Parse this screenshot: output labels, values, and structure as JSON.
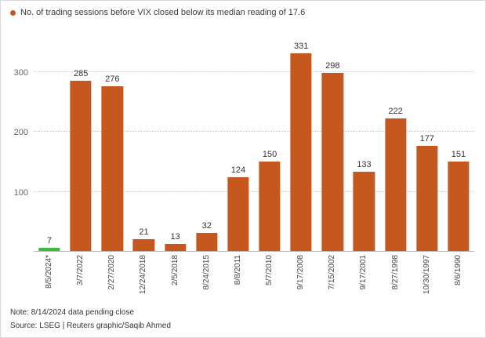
{
  "legend": {
    "label": "No. of trading sessions before VIX closed below its median reading of 17.6"
  },
  "colors": {
    "bar": "#c4581f",
    "highlight": "#3bbd3b",
    "legend_dot": "#c4581f"
  },
  "chart_data": {
    "type": "bar",
    "title": "No. of trading sessions before VIX closed below its median reading of 17.6",
    "categories": [
      "8/5/2024*",
      "3/7/2022",
      "2/27/2020",
      "12/24/2018",
      "2/5/2018",
      "8/24/2015",
      "8/8/2011",
      "5/7/2010",
      "9/17/2008",
      "7/15/2002",
      "9/17/2001",
      "8/27/1998",
      "10/30/1997",
      "8/6/1990"
    ],
    "values": [
      7,
      285,
      276,
      21,
      13,
      32,
      124,
      150,
      331,
      298,
      133,
      222,
      177,
      151
    ],
    "highlight_index": 0,
    "xlabel": "",
    "ylabel": "",
    "yticks": [
      100,
      200,
      300
    ],
    "ylim": [
      0,
      340
    ],
    "grid": "dotted horizontal",
    "legend_position": "top-left",
    "value_labels": true
  },
  "footer": {
    "note": "Note: 8/14/2024 data pending close",
    "source": "Source: LSEG | Reuters graphic/Saqib Ahmed"
  }
}
